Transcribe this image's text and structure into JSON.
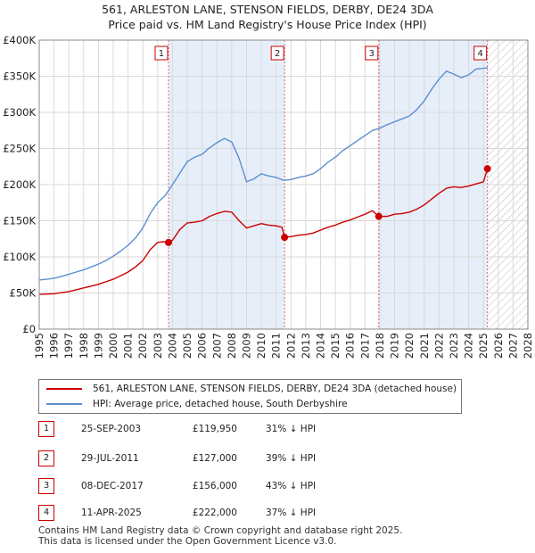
{
  "title_line1": "561, ARLESTON LANE, STENSON FIELDS, DERBY, DE24 3DA",
  "title_line2": "Price paid vs. HM Land Registry's House Price Index (HPI)",
  "colors": {
    "price_paid": "#cc0000",
    "hpi": "#5b8fd0",
    "shade": "#e6eefa",
    "grid": "#d9d9d9"
  },
  "chart_data": {
    "type": "line",
    "title": "Price paid vs. HM Land Registry's House Price Index (HPI)",
    "xlabel": "",
    "ylabel": "",
    "xlim": [
      1995,
      2028
    ],
    "ylim": [
      0,
      400000
    ],
    "x_ticks": [
      "1995",
      "1996",
      "1997",
      "1998",
      "1999",
      "2000",
      "2001",
      "2002",
      "2003",
      "2004",
      "2005",
      "2006",
      "2007",
      "2008",
      "2009",
      "2010",
      "2011",
      "2012",
      "2013",
      "2014",
      "2015",
      "2016",
      "2017",
      "2018",
      "2019",
      "2020",
      "2021",
      "2022",
      "2023",
      "2024",
      "2025",
      "2026",
      "2027",
      "2028"
    ],
    "y_ticks": [
      {
        "value": 0,
        "label": "£0"
      },
      {
        "value": 50000,
        "label": "£50K"
      },
      {
        "value": 100000,
        "label": "£100K"
      },
      {
        "value": 150000,
        "label": "£150K"
      },
      {
        "value": 200000,
        "label": "£200K"
      },
      {
        "value": 250000,
        "label": "£250K"
      },
      {
        "value": 300000,
        "label": "£300K"
      },
      {
        "value": 350000,
        "label": "£350K"
      },
      {
        "value": 400000,
        "label": "£400K"
      }
    ],
    "grid": true,
    "forecast_hatch_from": 2025.3,
    "series": [
      {
        "name": "561, ARLESTON LANE, STENSON FIELDS, DERBY, DE24 3DA (detached house)",
        "color": "#cc0000",
        "x": [
          1995.0,
          1995.5,
          1996.0,
          1996.5,
          1997.0,
          1997.5,
          1998.0,
          1998.5,
          1999.0,
          1999.5,
          2000.0,
          2000.5,
          2001.0,
          2001.5,
          2002.0,
          2002.5,
          2003.0,
          2003.4,
          2003.73,
          2004.0,
          2004.5,
          2005.0,
          2005.5,
          2006.0,
          2006.5,
          2007.0,
          2007.5,
          2008.0,
          2008.5,
          2009.0,
          2009.5,
          2010.0,
          2010.5,
          2011.0,
          2011.4,
          2011.57,
          2012.0,
          2012.5,
          2013.0,
          2013.5,
          2014.0,
          2014.5,
          2015.0,
          2015.5,
          2016.0,
          2016.5,
          2017.0,
          2017.5,
          2017.93,
          2018.5,
          2019.0,
          2019.5,
          2020.0,
          2020.5,
          2021.0,
          2021.5,
          2022.0,
          2022.5,
          2023.0,
          2023.5,
          2024.0,
          2024.5,
          2025.0,
          2025.27
        ],
        "values": [
          48000,
          48500,
          49000,
          50500,
          52000,
          54500,
          57000,
          59500,
          62000,
          65500,
          69000,
          74000,
          79000,
          86000,
          95000,
          110000,
          120000,
          121000,
          119950,
          123000,
          138000,
          147000,
          148000,
          150000,
          156000,
          160000,
          163000,
          162000,
          150000,
          140000,
          143000,
          146000,
          144000,
          143000,
          141000,
          127000,
          128000,
          130000,
          131000,
          133000,
          137000,
          141000,
          144000,
          148000,
          151000,
          155000,
          159000,
          164000,
          156000,
          156000,
          159000,
          160000,
          162000,
          166000,
          172000,
          180000,
          188000,
          195000,
          197000,
          196000,
          198000,
          201000,
          204000,
          222000
        ]
      },
      {
        "name": "HPI: Average price, detached house, South Derbyshire",
        "color": "#5b8fd0",
        "x": [
          1995.0,
          1995.5,
          1996.0,
          1996.5,
          1997.0,
          1997.5,
          1998.0,
          1998.5,
          1999.0,
          1999.5,
          2000.0,
          2000.5,
          2001.0,
          2001.5,
          2002.0,
          2002.5,
          2003.0,
          2003.5,
          2004.0,
          2004.5,
          2005.0,
          2005.5,
          2006.0,
          2006.5,
          2007.0,
          2007.5,
          2008.0,
          2008.5,
          2009.0,
          2009.5,
          2010.0,
          2010.5,
          2011.0,
          2011.5,
          2012.0,
          2012.5,
          2013.0,
          2013.5,
          2014.0,
          2014.5,
          2015.0,
          2015.5,
          2016.0,
          2016.5,
          2017.0,
          2017.5,
          2018.0,
          2018.5,
          2019.0,
          2019.5,
          2020.0,
          2020.5,
          2021.0,
          2021.5,
          2022.0,
          2022.5,
          2023.0,
          2023.5,
          2024.0,
          2024.5,
          2025.0,
          2025.3
        ],
        "values": [
          68000,
          69000,
          70500,
          73000,
          76000,
          79000,
          82000,
          86000,
          90000,
          95000,
          101000,
          108000,
          116000,
          126000,
          140000,
          160000,
          175000,
          185000,
          200000,
          216000,
          232000,
          238000,
          242000,
          251000,
          258000,
          264000,
          259000,
          236000,
          204000,
          208000,
          215000,
          212000,
          210000,
          206000,
          207000,
          210000,
          212000,
          215000,
          222000,
          231000,
          238000,
          247000,
          254000,
          261000,
          268000,
          275000,
          278000,
          283000,
          287000,
          291000,
          295000,
          304000,
          316000,
          332000,
          346000,
          357000,
          353000,
          348000,
          352000,
          360000,
          361000,
          362000
        ]
      }
    ],
    "sales": [
      {
        "id": "1",
        "x": 2003.73,
        "value": 119950
      },
      {
        "id": "2",
        "x": 2011.57,
        "value": 127000
      },
      {
        "id": "3",
        "x": 2017.93,
        "value": 156000
      },
      {
        "id": "4",
        "x": 2025.27,
        "value": 222000
      }
    ]
  },
  "legend": {
    "price_paid": "561, ARLESTON LANE, STENSON FIELDS, DERBY, DE24 3DA (detached house)",
    "hpi": "HPI: Average price, detached house, South Derbyshire"
  },
  "transactions": [
    {
      "num": "1",
      "date": "25-SEP-2003",
      "price": "£119,950",
      "hpi": "31% ↓ HPI"
    },
    {
      "num": "2",
      "date": "29-JUL-2011",
      "price": "£127,000",
      "hpi": "39% ↓ HPI"
    },
    {
      "num": "3",
      "date": "08-DEC-2017",
      "price": "£156,000",
      "hpi": "43% ↓ HPI"
    },
    {
      "num": "4",
      "date": "11-APR-2025",
      "price": "£222,000",
      "hpi": "37% ↓ HPI"
    }
  ],
  "footer": {
    "line1": "Contains HM Land Registry data © Crown copyright and database right 2025.",
    "line2": "This data is licensed under the Open Government Licence v3.0."
  }
}
